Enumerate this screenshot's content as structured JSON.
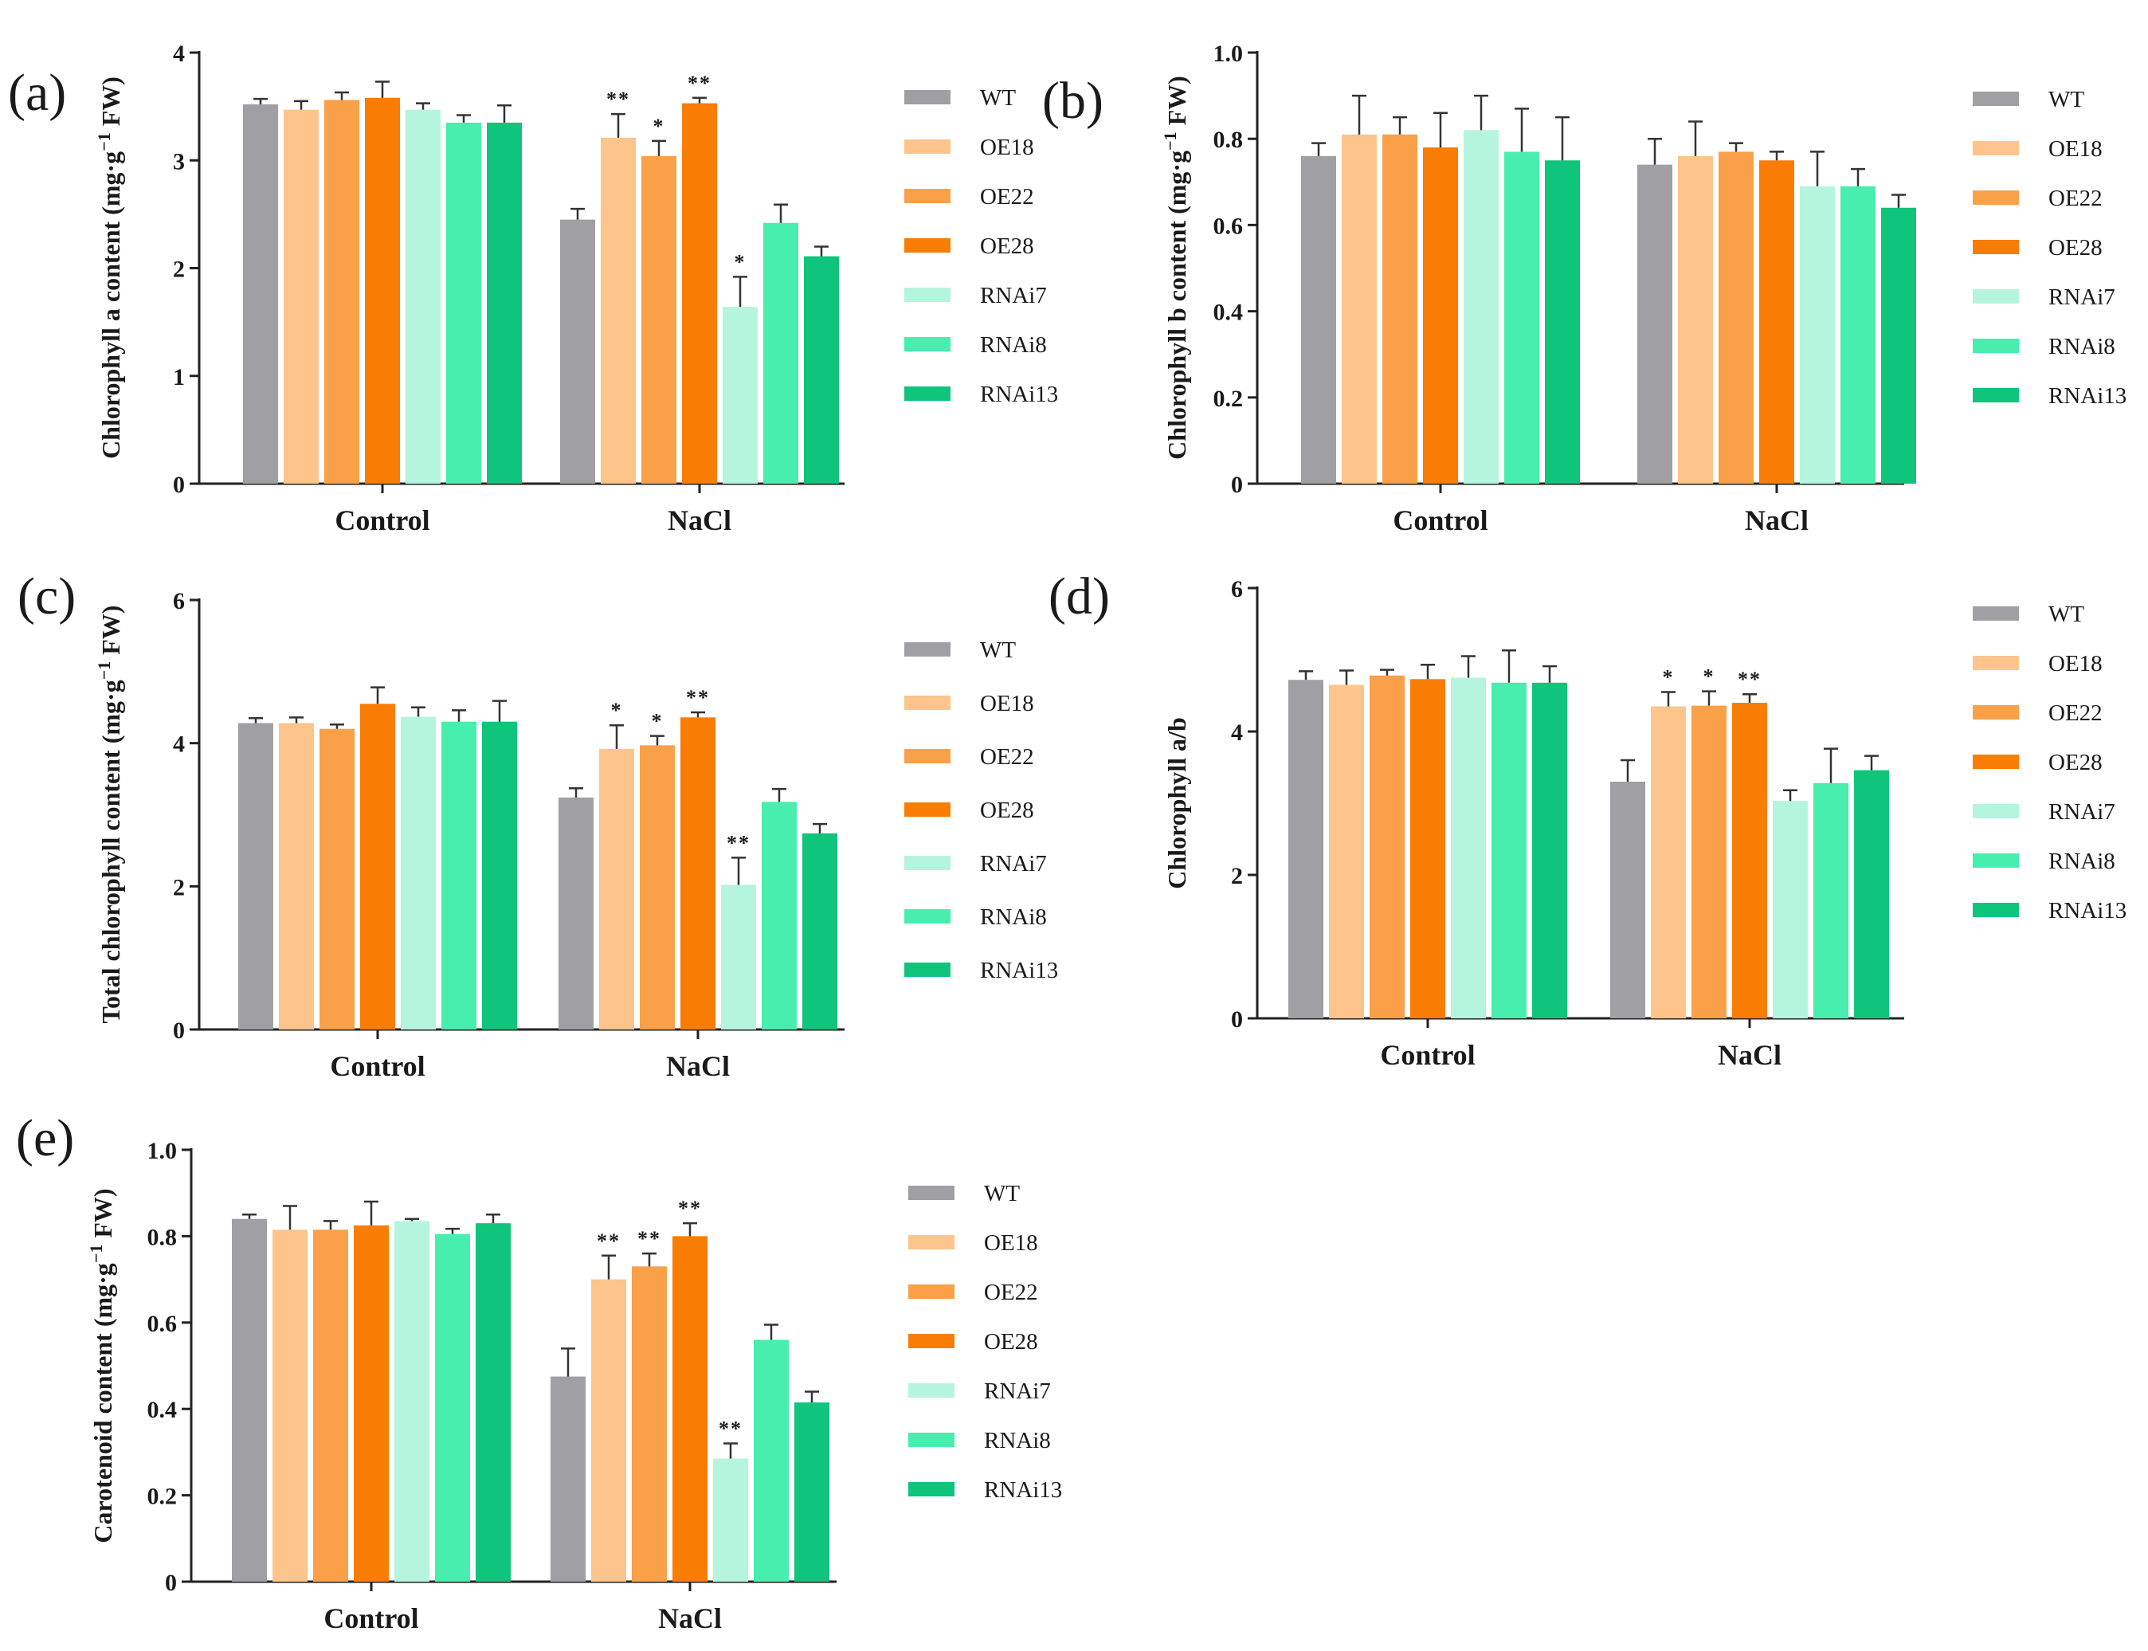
{
  "figure": {
    "series_names": [
      "WT",
      "OE18",
      "OE22",
      "OE28",
      "RNAi7",
      "RNAi8",
      "RNAi13"
    ],
    "series_colors": [
      "#a09fa4",
      "#fdc48c",
      "#f9a048",
      "#f97c05",
      "#b5f5dd",
      "#47eeae",
      "#0fc47b"
    ]
  },
  "chart_data": [
    {
      "id": "a",
      "type": "bar",
      "panel_label": "(a)",
      "title": "",
      "xlabel": "",
      "ylabel": "Chlorophyll a content (mg·g−1 FW)",
      "ylabel_main": "Chlorophyll a content (mg·g",
      "ylabel_sup": "−1",
      "ylabel_end": " FW)",
      "ylim": [
        0,
        4
      ],
      "yticks": [
        "0",
        "1",
        "2",
        "3",
        "4"
      ],
      "categories": [
        "Control",
        "NaCl"
      ],
      "series": [
        {
          "name": "WT",
          "values": [
            3.52,
            2.45
          ],
          "errors": [
            0.05,
            0.1
          ],
          "sig": [
            "",
            ""
          ]
        },
        {
          "name": "OE18",
          "values": [
            3.47,
            3.21
          ],
          "errors": [
            0.08,
            0.22
          ],
          "sig": [
            "",
            "**"
          ]
        },
        {
          "name": "OE22",
          "values": [
            3.56,
            3.04
          ],
          "errors": [
            0.07,
            0.14
          ],
          "sig": [
            "",
            "*"
          ]
        },
        {
          "name": "OE28",
          "values": [
            3.58,
            3.53
          ],
          "errors": [
            0.15,
            0.05
          ],
          "sig": [
            "",
            "**"
          ]
        },
        {
          "name": "RNAi7",
          "values": [
            3.47,
            1.64
          ],
          "errors": [
            0.06,
            0.28
          ],
          "sig": [
            "",
            "*"
          ]
        },
        {
          "name": "RNAi8",
          "values": [
            3.35,
            2.42
          ],
          "errors": [
            0.07,
            0.17
          ],
          "sig": [
            "",
            ""
          ]
        },
        {
          "name": "RNAi13",
          "values": [
            3.35,
            2.11
          ],
          "errors": [
            0.16,
            0.09
          ],
          "sig": [
            "",
            ""
          ]
        }
      ]
    },
    {
      "id": "b",
      "type": "bar",
      "panel_label": "(b)",
      "title": "",
      "xlabel": "",
      "ylabel": "Chlorophyll b content (mg·g−1 FW)",
      "ylabel_main": "Chlorophyll b content (mg·g",
      "ylabel_sup": "−1",
      "ylabel_end": " FW)",
      "ylim": [
        0,
        1.0
      ],
      "yticks": [
        "0",
        "0.2",
        "0.4",
        "0.6",
        "0.8",
        "1.0"
      ],
      "categories": [
        "Control",
        "NaCl"
      ],
      "series": [
        {
          "name": "WT",
          "values": [
            0.76,
            0.74
          ],
          "errors": [
            0.03,
            0.06
          ],
          "sig": [
            "",
            ""
          ]
        },
        {
          "name": "OE18",
          "values": [
            0.81,
            0.76
          ],
          "errors": [
            0.09,
            0.08
          ],
          "sig": [
            "",
            ""
          ]
        },
        {
          "name": "OE22",
          "values": [
            0.81,
            0.77
          ],
          "errors": [
            0.04,
            0.02
          ],
          "sig": [
            "",
            ""
          ]
        },
        {
          "name": "OE28",
          "values": [
            0.78,
            0.75
          ],
          "errors": [
            0.08,
            0.02
          ],
          "sig": [
            "",
            ""
          ]
        },
        {
          "name": "RNAi7",
          "values": [
            0.82,
            0.69
          ],
          "errors": [
            0.08,
            0.08
          ],
          "sig": [
            "",
            ""
          ]
        },
        {
          "name": "RNAi8",
          "values": [
            0.77,
            0.69
          ],
          "errors": [
            0.1,
            0.04
          ],
          "sig": [
            "",
            ""
          ]
        },
        {
          "name": "RNAi13",
          "values": [
            0.75,
            0.64
          ],
          "errors": [
            0.1,
            0.03
          ],
          "sig": [
            "",
            ""
          ]
        }
      ]
    },
    {
      "id": "c",
      "type": "bar",
      "panel_label": "(c)",
      "title": "",
      "xlabel": "",
      "ylabel": "Total chlorophyll content (mg·g−1 FW)",
      "ylabel_main": "Total chlorophyll content (mg·g",
      "ylabel_sup": "−1",
      "ylabel_end": " FW)",
      "ylim": [
        0,
        6
      ],
      "yticks": [
        "0",
        "2",
        "4",
        "6"
      ],
      "categories": [
        "Control",
        "NaCl"
      ],
      "series": [
        {
          "name": "WT",
          "values": [
            4.28,
            3.24
          ],
          "errors": [
            0.07,
            0.13
          ],
          "sig": [
            "",
            ""
          ]
        },
        {
          "name": "OE18",
          "values": [
            4.28,
            3.92
          ],
          "errors": [
            0.08,
            0.33
          ],
          "sig": [
            "",
            "*"
          ]
        },
        {
          "name": "OE22",
          "values": [
            4.2,
            3.97
          ],
          "errors": [
            0.06,
            0.13
          ],
          "sig": [
            "",
            "*"
          ]
        },
        {
          "name": "OE28",
          "values": [
            4.55,
            4.36
          ],
          "errors": [
            0.23,
            0.07
          ],
          "sig": [
            "",
            "**"
          ]
        },
        {
          "name": "RNAi7",
          "values": [
            4.37,
            2.02
          ],
          "errors": [
            0.13,
            0.38
          ],
          "sig": [
            "",
            "**"
          ]
        },
        {
          "name": "RNAi8",
          "values": [
            4.3,
            3.18
          ],
          "errors": [
            0.16,
            0.18
          ],
          "sig": [
            "",
            ""
          ]
        },
        {
          "name": "RNAi13",
          "values": [
            4.3,
            2.74
          ],
          "errors": [
            0.29,
            0.13
          ],
          "sig": [
            "",
            ""
          ]
        }
      ]
    },
    {
      "id": "d",
      "type": "bar",
      "panel_label": "(d)",
      "title": "",
      "xlabel": "",
      "ylabel": "Chlorophyll a/b",
      "ylabel_main": "Chlorophyll a/b",
      "ylabel_sup": "",
      "ylabel_end": "",
      "ylim": [
        0,
        6
      ],
      "yticks": [
        "0",
        "2",
        "4",
        "6"
      ],
      "categories": [
        "Control",
        "NaCl"
      ],
      "series": [
        {
          "name": "WT",
          "values": [
            4.72,
            3.3
          ],
          "errors": [
            0.12,
            0.3
          ],
          "sig": [
            "",
            ""
          ]
        },
        {
          "name": "OE18",
          "values": [
            4.65,
            4.35
          ],
          "errors": [
            0.2,
            0.2
          ],
          "sig": [
            "",
            "*"
          ]
        },
        {
          "name": "OE22",
          "values": [
            4.78,
            4.36
          ],
          "errors": [
            0.08,
            0.2
          ],
          "sig": [
            "",
            "*"
          ]
        },
        {
          "name": "OE28",
          "values": [
            4.73,
            4.4
          ],
          "errors": [
            0.2,
            0.12
          ],
          "sig": [
            "",
            "**"
          ]
        },
        {
          "name": "RNAi7",
          "values": [
            4.75,
            3.03
          ],
          "errors": [
            0.3,
            0.15
          ],
          "sig": [
            "",
            ""
          ]
        },
        {
          "name": "RNAi8",
          "values": [
            4.68,
            3.28
          ],
          "errors": [
            0.45,
            0.48
          ],
          "sig": [
            "",
            ""
          ]
        },
        {
          "name": "RNAi13",
          "values": [
            4.68,
            3.46
          ],
          "errors": [
            0.23,
            0.2
          ],
          "sig": [
            "",
            ""
          ]
        }
      ]
    },
    {
      "id": "e",
      "type": "bar",
      "panel_label": "(e)",
      "title": "",
      "xlabel": "",
      "ylabel": "Carotenoid content (mg·g−1 FW)",
      "ylabel_main": "Carotenoid content (mg·g",
      "ylabel_sup": "−1",
      "ylabel_end": " FW)",
      "ylim": [
        0,
        1.0
      ],
      "yticks": [
        "0",
        "0.2",
        "0.4",
        "0.6",
        "0.8",
        "1.0"
      ],
      "categories": [
        "Control",
        "NaCl"
      ],
      "series": [
        {
          "name": "WT",
          "values": [
            0.84,
            0.475
          ],
          "errors": [
            0.01,
            0.065
          ],
          "sig": [
            "",
            ""
          ]
        },
        {
          "name": "OE18",
          "values": [
            0.815,
            0.7
          ],
          "errors": [
            0.055,
            0.055
          ],
          "sig": [
            "",
            "**"
          ]
        },
        {
          "name": "OE22",
          "values": [
            0.815,
            0.73
          ],
          "errors": [
            0.02,
            0.03
          ],
          "sig": [
            "",
            "**"
          ]
        },
        {
          "name": "OE28",
          "values": [
            0.825,
            0.8
          ],
          "errors": [
            0.055,
            0.03
          ],
          "sig": [
            "",
            "**"
          ]
        },
        {
          "name": "RNAi7",
          "values": [
            0.835,
            0.285
          ],
          "errors": [
            0.005,
            0.035
          ],
          "sig": [
            "",
            "**"
          ]
        },
        {
          "name": "RNAi8",
          "values": [
            0.805,
            0.56
          ],
          "errors": [
            0.012,
            0.035
          ],
          "sig": [
            "",
            ""
          ]
        },
        {
          "name": "RNAi13",
          "values": [
            0.83,
            0.415
          ],
          "errors": [
            0.02,
            0.025
          ],
          "sig": [
            "",
            ""
          ]
        }
      ]
    }
  ]
}
